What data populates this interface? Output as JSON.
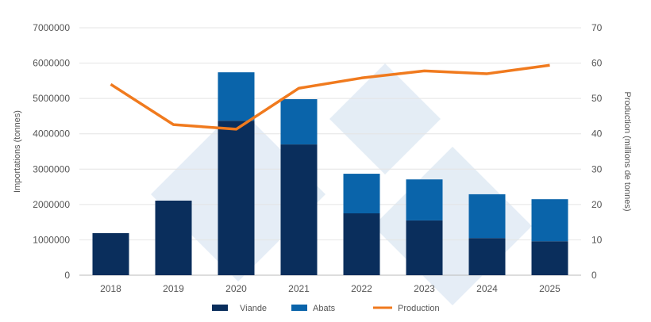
{
  "chart_data": {
    "type": "bar",
    "stacked": true,
    "categories": [
      "2018",
      "2019",
      "2020",
      "2021",
      "2022",
      "2023",
      "2024",
      "2025"
    ],
    "series": [
      {
        "name": "Viande",
        "axis": "left",
        "color": "#0a2e5c",
        "values": [
          1190000,
          2110000,
          4370000,
          3700000,
          1750000,
          1550000,
          1050000,
          960000
        ]
      },
      {
        "name": "Abats",
        "axis": "left",
        "color": "#0a64aa",
        "values": [
          0,
          0,
          1370000,
          1280000,
          1120000,
          1160000,
          1240000,
          1190000
        ]
      },
      {
        "name": "Production",
        "axis": "right",
        "type": "line",
        "color": "#f07a1e",
        "values": [
          54.0,
          42.6,
          41.3,
          52.9,
          55.8,
          57.8,
          57.0,
          59.4
        ]
      }
    ],
    "ylabel": "Importations (tonnes)",
    "y2label": "Production (millions de tonnes)",
    "ylim": [
      0,
      7000000
    ],
    "y2lim": [
      0,
      70
    ],
    "yticks": [
      "0",
      "1000000",
      "2000000",
      "3000000",
      "4000000",
      "5000000",
      "6000000",
      "7000000"
    ],
    "y2ticks": [
      "0",
      "10",
      "20",
      "30",
      "40",
      "50",
      "60",
      "70"
    ],
    "grid": true,
    "legend": "bottom"
  }
}
